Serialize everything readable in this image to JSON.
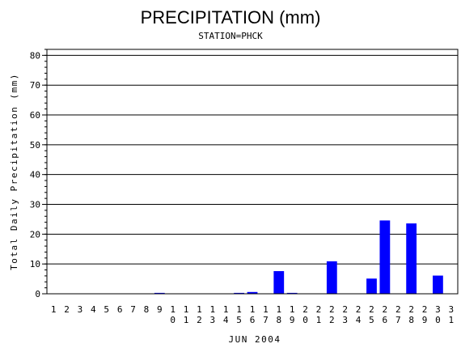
{
  "chart_data": {
    "type": "bar",
    "title": "PRECIPITATION (mm)",
    "subtitle": "STATION=PHCK",
    "xlabel": "JUN 2004",
    "ylabel": "Total Daily Precipitation (mm)",
    "ylim": [
      0,
      82
    ],
    "yticks": [
      0,
      10,
      20,
      30,
      40,
      50,
      60,
      70,
      80
    ],
    "grid": true,
    "bar_color": "#0000ff",
    "categories": [
      "1",
      "2",
      "3",
      "4",
      "5",
      "6",
      "7",
      "8",
      "9",
      "10",
      "11",
      "12",
      "13",
      "14",
      "15",
      "16",
      "17",
      "18",
      "19",
      "20",
      "21",
      "22",
      "23",
      "24",
      "25",
      "26",
      "27",
      "28",
      "29",
      "30",
      "31"
    ],
    "values": [
      0,
      0,
      0,
      0,
      0,
      0,
      0,
      0,
      0.3,
      0,
      0,
      0,
      0,
      0,
      0.3,
      0.6,
      0,
      7.6,
      0.3,
      0,
      0,
      10.9,
      0,
      0,
      5.1,
      24.6,
      0,
      23.6,
      0,
      6.1,
      0
    ]
  }
}
